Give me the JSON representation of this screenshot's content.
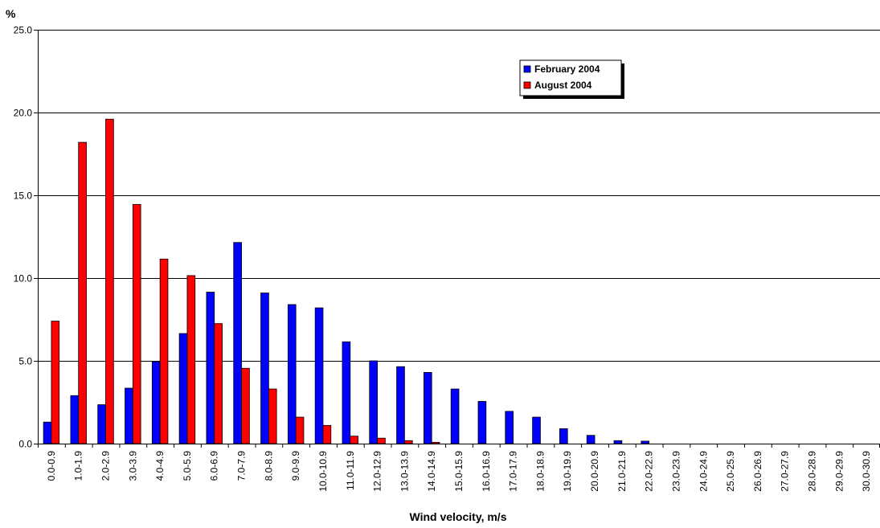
{
  "chart_data": {
    "type": "bar",
    "title": "",
    "ylabel": "%",
    "xlabel": "Wind velocity, m/s",
    "ylim": [
      0,
      25
    ],
    "yticks": [
      "0.0",
      "5.0",
      "10.0",
      "15.0",
      "20.0",
      "25.0"
    ],
    "grid": "horizontal",
    "legend_position": "top-right",
    "categories": [
      "0.0-0.9",
      "1.0-1.9",
      "2.0-2.9",
      "3.0-3.9",
      "4.0-4.9",
      "5.0-5.9",
      "6.0-6.9",
      "7.0-7.9",
      "8.0-8.9",
      "9.0-9.9",
      "10.0-10.9",
      "11.0-11.9",
      "12.0-12.9",
      "13.0-13.9",
      "14.0-14.9",
      "15.0-15.9",
      "16.0-16.9",
      "17.0-17.9",
      "18.0-18.9",
      "19.0-19.9",
      "20.0-20.9",
      "21.0-21.9",
      "22.0-22.9",
      "23.0-23.9",
      "24.0-24.9",
      "25.0-25.9",
      "26.0-26.9",
      "27.0-27.9",
      "28.0-28.9",
      "29.0-29.9",
      "30.0-30.9"
    ],
    "series": [
      {
        "name": "February 2004",
        "color": "#0000FF",
        "values": [
          1.3,
          2.9,
          2.35,
          3.35,
          4.95,
          6.65,
          9.15,
          12.15,
          9.1,
          8.4,
          8.2,
          6.15,
          5.0,
          4.65,
          4.3,
          3.3,
          2.55,
          1.95,
          1.6,
          0.9,
          0.5,
          0.18,
          0.15,
          0,
          0,
          0,
          0,
          0,
          0,
          0,
          0
        ]
      },
      {
        "name": "August 2004",
        "color": "#FF0000",
        "values": [
          7.4,
          18.2,
          19.6,
          14.45,
          11.15,
          10.15,
          7.25,
          4.55,
          3.3,
          1.6,
          1.1,
          0.45,
          0.33,
          0.18,
          0.08,
          0,
          0,
          0,
          0,
          0,
          0,
          0,
          0,
          0,
          0,
          0,
          0,
          0,
          0,
          0,
          0
        ]
      }
    ]
  }
}
